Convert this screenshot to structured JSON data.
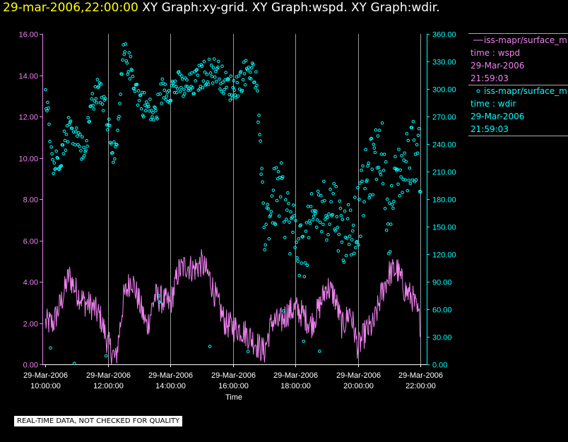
{
  "header": {
    "timestamp": "29-mar-2006,22:00:00",
    "graphs": "  XY Graph:xy-grid.  XY Graph:wspd.  XY Graph:wdir."
  },
  "note": "REAL-TIME DATA, NOT CHECKED FOR QUALITY",
  "colors": {
    "background": "#000000",
    "wspd": "#ee82ee",
    "wdir": "#00ffff",
    "grid": "#9a9a9a",
    "title_time": "#ffff00"
  },
  "legend": {
    "wspd": {
      "name": "iss-mapr/surface_m",
      "line1": "time : wspd",
      "line2": "29-Mar-2006",
      "line3": "21:59:03"
    },
    "wdir": {
      "name": "iss-mapr/surface_m",
      "line1": "time : wdir",
      "line2": "29-Mar-2006",
      "line3": "21:59:03"
    }
  },
  "chart_data": {
    "type": "line",
    "xlabel": "Time",
    "xlim": [
      9.9,
      22.2
    ],
    "x_ticks": [
      {
        "x": 10,
        "date": "29-Mar-2006",
        "time": "10:00:00"
      },
      {
        "x": 12,
        "date": "29-Mar-2006",
        "time": "12:00:00"
      },
      {
        "x": 14,
        "date": "29-Mar-2006",
        "time": "14:00:00"
      },
      {
        "x": 16,
        "date": "29-Mar-2006",
        "time": "16:00:00"
      },
      {
        "x": 18,
        "date": "29-Mar-2006",
        "time": "18:00:00"
      },
      {
        "x": 20,
        "date": "29-Mar-2006",
        "time": "20:00:00"
      },
      {
        "x": 22,
        "date": "29-Mar-2006",
        "time": "22:00:00"
      }
    ],
    "y_left": {
      "lim": [
        0,
        16
      ],
      "ticks": [
        "0.00",
        "2.00",
        "4.00",
        "6.00",
        "8.00",
        "10.00",
        "12.00",
        "14.00",
        "16.00"
      ]
    },
    "y_right": {
      "lim": [
        0,
        360
      ],
      "ticks": [
        "0.00",
        "30.00",
        "60.00",
        "90.00",
        "120.00",
        "150.00",
        "180.00",
        "210.00",
        "240.00",
        "270.00",
        "300.00",
        "330.00",
        "360.00"
      ]
    },
    "grid": "vertical",
    "series": [
      {
        "key": "wspd",
        "axis": "left",
        "style": "line",
        "x": [
          10.0,
          10.25,
          10.5,
          10.75,
          11.0,
          11.25,
          11.5,
          11.75,
          12.0,
          12.25,
          12.5,
          12.75,
          13.0,
          13.25,
          13.5,
          13.75,
          14.0,
          14.25,
          14.5,
          14.75,
          15.0,
          15.25,
          15.5,
          15.75,
          16.0,
          16.25,
          16.5,
          16.75,
          17.0,
          17.25,
          17.5,
          17.75,
          18.0,
          18.25,
          18.5,
          18.75,
          19.0,
          19.25,
          19.5,
          19.75,
          20.0,
          20.25,
          20.5,
          20.75,
          21.0,
          21.25,
          21.5,
          21.75,
          22.0
        ],
        "y": [
          2.0,
          2.0,
          3.0,
          4.3,
          3.5,
          3.0,
          2.8,
          2.3,
          1.0,
          0.2,
          3.2,
          4.2,
          3.0,
          1.8,
          3.3,
          3.1,
          2.9,
          4.5,
          4.8,
          4.6,
          4.9,
          4.2,
          3.0,
          2.0,
          1.8,
          1.7,
          1.4,
          1.0,
          0.6,
          2.1,
          2.0,
          2.5,
          2.7,
          2.4,
          1.9,
          2.7,
          3.8,
          3.3,
          1.8,
          2.6,
          0.8,
          1.6,
          1.9,
          3.4,
          4.4,
          4.6,
          3.6,
          3.2,
          2.0
        ]
      },
      {
        "key": "wdir",
        "axis": "right",
        "style": "scatter",
        "x": [
          10.0,
          10.25,
          10.5,
          10.75,
          11.0,
          11.25,
          11.5,
          11.75,
          12.0,
          12.25,
          12.5,
          12.75,
          13.0,
          13.25,
          13.5,
          13.75,
          14.0,
          14.25,
          14.5,
          14.75,
          15.0,
          15.25,
          15.5,
          15.75,
          16.0,
          16.25,
          16.5,
          16.75,
          17.0,
          17.25,
          17.5,
          17.75,
          18.0,
          18.25,
          18.5,
          18.75,
          19.0,
          19.25,
          19.5,
          19.75,
          20.0,
          20.25,
          20.5,
          20.75,
          21.0,
          21.25,
          21.5,
          21.75,
          22.0
        ],
        "y": [
          300,
          215,
          230,
          260,
          250,
          230,
          290,
          300,
          265,
          220,
          340,
          320,
          290,
          280,
          270,
          300,
          300,
          305,
          300,
          305,
          315,
          320,
          320,
          305,
          300,
          310,
          325,
          310,
          150,
          175,
          190,
          160,
          140,
          120,
          150,
          170,
          170,
          175,
          140,
          150,
          160,
          200,
          220,
          240,
          150,
          210,
          215,
          235,
          220
        ]
      }
    ]
  }
}
